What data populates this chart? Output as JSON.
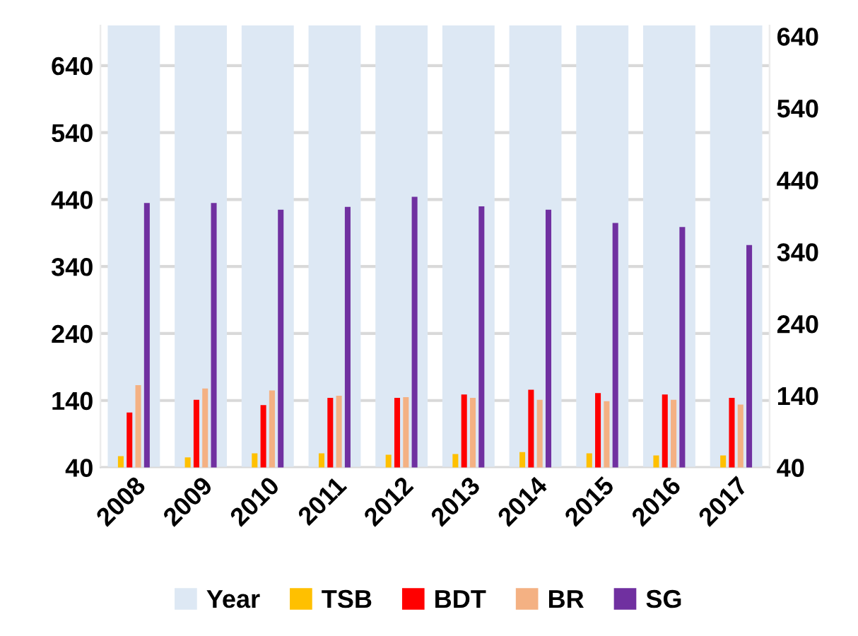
{
  "chart_data": {
    "type": "bar",
    "categories": [
      "2008",
      "2009",
      "2010",
      "2011",
      "2012",
      "2013",
      "2014",
      "2015",
      "2016",
      "2017"
    ],
    "series": [
      {
        "name": "Year",
        "color": "#dde8f4",
        "axis": "y2",
        "values": [
          655,
          655,
          655,
          655,
          655,
          655,
          655,
          655,
          655,
          655
        ]
      },
      {
        "name": "TSB",
        "color": "#ffc000",
        "values": [
          57,
          55,
          61,
          61,
          59,
          60,
          63,
          61,
          58,
          58
        ]
      },
      {
        "name": "BDT",
        "color": "#ff0000",
        "values": [
          122,
          141,
          133,
          144,
          144,
          149,
          156,
          151,
          149,
          144
        ]
      },
      {
        "name": "BR",
        "color": "#f4b183",
        "values": [
          163,
          158,
          155,
          147,
          145,
          144,
          141,
          139,
          141,
          134
        ]
      },
      {
        "name": "SG",
        "color": "#7030a0",
        "values": [
          435,
          435,
          425,
          429,
          444,
          430,
          425,
          405,
          399,
          372
        ]
      }
    ],
    "ylim": [
      40,
      700
    ],
    "yticks": [
      40,
      140,
      240,
      340,
      440,
      540,
      640
    ],
    "y2lim": [
      40,
      655
    ],
    "y2ticks": [
      40,
      140,
      240,
      340,
      440,
      540,
      640
    ],
    "grid": "y",
    "legend": "bottom"
  }
}
